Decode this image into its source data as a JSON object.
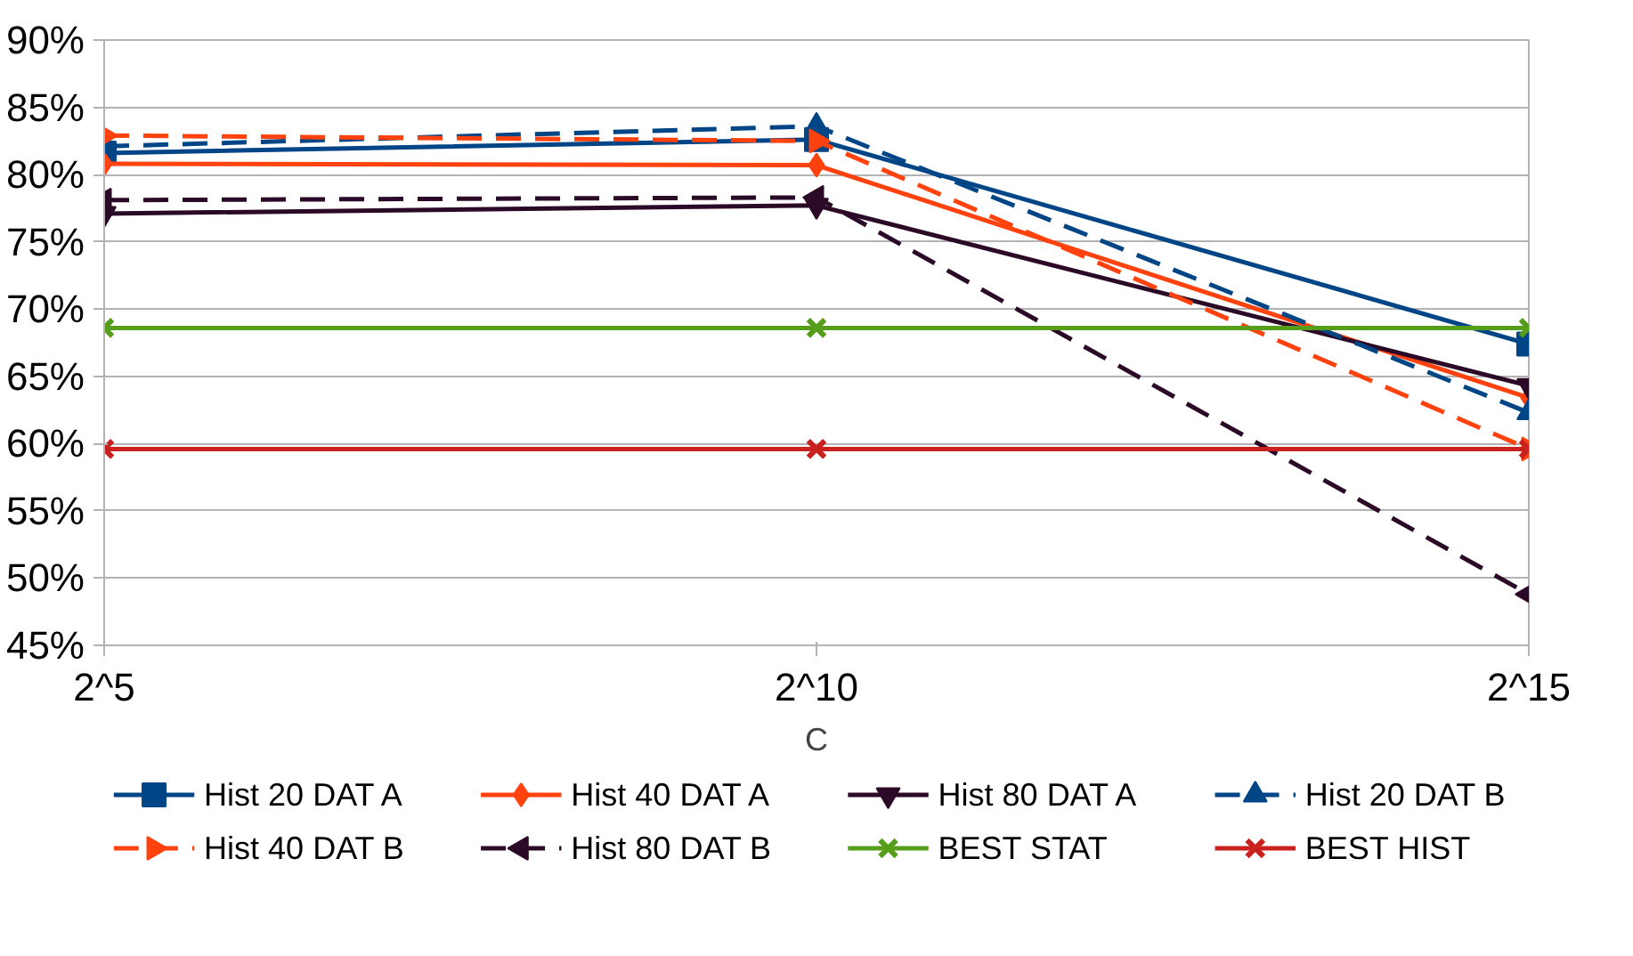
{
  "chart_data": {
    "type": "line",
    "xlabel": "C",
    "categories": [
      "2^5",
      "2^10",
      "2^15"
    ],
    "ylim": [
      45,
      90
    ],
    "yticks": [
      {
        "value": 45,
        "label": "45%"
      },
      {
        "value": 50,
        "label": "50%"
      },
      {
        "value": 55,
        "label": "55%"
      },
      {
        "value": 60,
        "label": "60%"
      },
      {
        "value": 65,
        "label": "65%"
      },
      {
        "value": 70,
        "label": "70%"
      },
      {
        "value": 75,
        "label": "75%"
      },
      {
        "value": 80,
        "label": "80%"
      },
      {
        "value": 85,
        "label": "85%"
      },
      {
        "value": 90,
        "label": "90%"
      }
    ],
    "grid": "y",
    "legend": "bottom",
    "series": [
      {
        "name": "Hist 20 DAT A",
        "color": "#004586",
        "marker": "square",
        "line_style": "solid",
        "values": [
          81.6,
          82.6,
          67.4
        ]
      },
      {
        "name": "Hist 40 DAT A",
        "color": "#ff420e",
        "marker": "diamond",
        "line_style": "solid",
        "values": [
          80.8,
          80.7,
          63.4
        ]
      },
      {
        "name": "Hist 80 DAT A",
        "color": "#2a0a26",
        "marker": "triangle_down",
        "line_style": "solid",
        "values": [
          77.1,
          77.7,
          64.3
        ]
      },
      {
        "name": "Hist 20 DAT B",
        "color": "#004586",
        "marker": "triangle",
        "line_style": "dashed",
        "values": [
          82.1,
          83.6,
          62.3
        ]
      },
      {
        "name": "Hist 40 DAT B",
        "color": "#ff420e",
        "marker": "triangle_right",
        "line_style": "dashed",
        "values": [
          82.9,
          82.5,
          59.6
        ]
      },
      {
        "name": "Hist 80 DAT B",
        "color": "#2a0a26",
        "marker": "triangle_left",
        "line_style": "dashed",
        "values": [
          78.1,
          78.3,
          48.8
        ]
      },
      {
        "name": "BEST STAT",
        "color": "#579d1c",
        "marker": "cross",
        "line_style": "solid",
        "values": [
          68.6,
          68.6,
          68.6
        ]
      },
      {
        "name": "BEST HIST",
        "color": "#c9211e",
        "marker": "cross",
        "line_style": "solid",
        "values": [
          59.6,
          59.6,
          59.6
        ]
      }
    ]
  }
}
